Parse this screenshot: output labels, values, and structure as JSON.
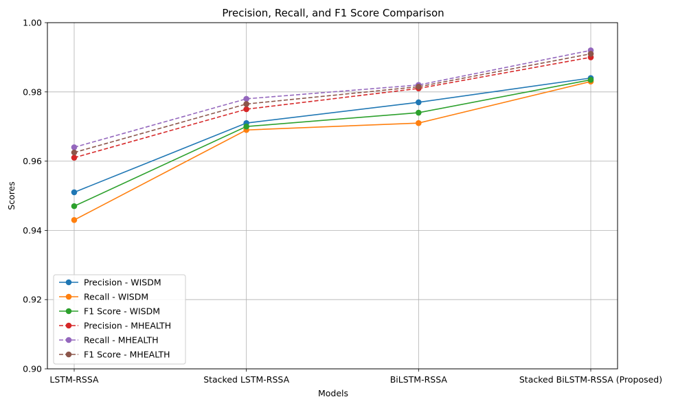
{
  "chart_data": {
    "type": "line",
    "title": "Precision, Recall, and F1 Score Comparison",
    "xlabel": "Models",
    "ylabel": "Scores",
    "categories": [
      "LSTM-RSSA",
      "Stacked LSTM-RSSA",
      "BiLSTM-RSSA",
      "Stacked BiLSTM-RSSA (Proposed)"
    ],
    "ylim": [
      0.9,
      1.0
    ],
    "yticks": [
      0.9,
      0.92,
      0.94,
      0.96,
      0.98,
      1.0
    ],
    "ytick_labels": [
      "0.90",
      "0.92",
      "0.94",
      "0.96",
      "0.98",
      "1.00"
    ],
    "grid": true,
    "legend_position": "lower-left",
    "series": [
      {
        "name": "Precision - WISDM",
        "values": [
          0.951,
          0.971,
          0.977,
          0.984
        ],
        "color": "#1f77b4",
        "dashed": false
      },
      {
        "name": "Recall - WISDM",
        "values": [
          0.943,
          0.969,
          0.971,
          0.983
        ],
        "color": "#ff7f0e",
        "dashed": false
      },
      {
        "name": "F1 Score - WISDM",
        "values": [
          0.947,
          0.97,
          0.974,
          0.9835
        ],
        "color": "#2ca02c",
        "dashed": false
      },
      {
        "name": "Precision - MHEALTH",
        "values": [
          0.961,
          0.975,
          0.981,
          0.99
        ],
        "color": "#d62728",
        "dashed": true
      },
      {
        "name": "Recall - MHEALTH",
        "values": [
          0.964,
          0.978,
          0.982,
          0.992
        ],
        "color": "#9467bd",
        "dashed": true
      },
      {
        "name": "F1 Score - MHEALTH",
        "values": [
          0.9625,
          0.9765,
          0.9815,
          0.991
        ],
        "color": "#8c564b",
        "dashed": true
      }
    ]
  }
}
